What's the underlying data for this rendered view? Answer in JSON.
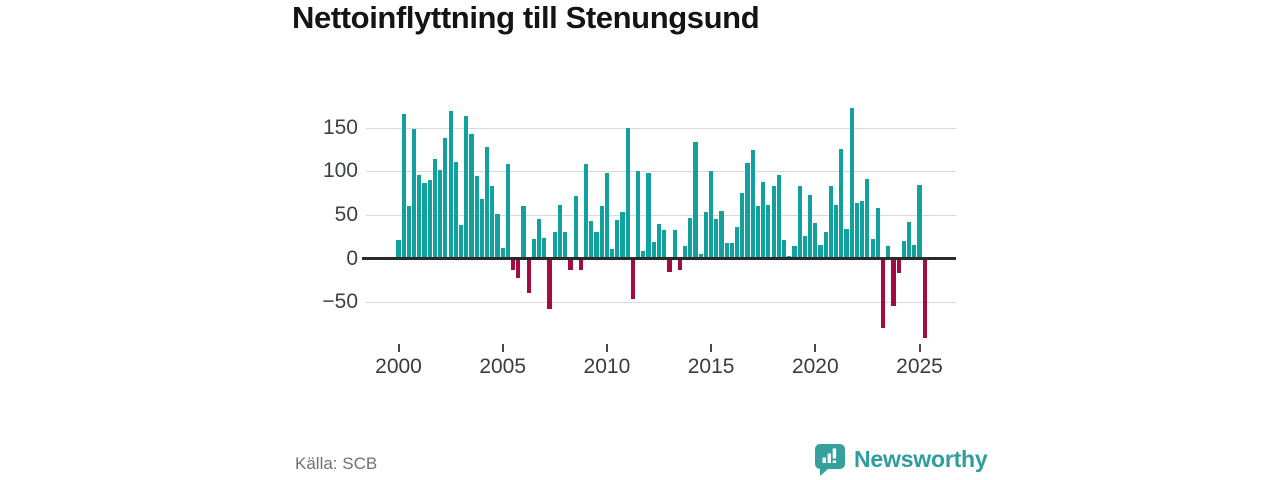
{
  "title": "Nettoinflyttning till Stenungsund",
  "source": {
    "text": "Källa: SCB"
  },
  "logo": {
    "text": "Newsworthy",
    "icon": "newsworthy-speech-bubble-chart-icon",
    "color": "#35a09c"
  },
  "colors": {
    "positive_bar": "#11a29f",
    "negative_bar": "#a40c3f",
    "gridline": "#d9d9d9",
    "zero_line": "#2b2b2b",
    "axis_text": "#3d4045",
    "title_text": "#141414",
    "source_text": "#6e7176",
    "logo_teal": "#2f9d9c"
  },
  "chart_data": {
    "type": "bar",
    "title": "Nettoinflyttning till Stenungsund",
    "xlabel": "",
    "ylabel": "",
    "frequency": "quarterly",
    "start": "2000 Q1",
    "end": "2025 Q2",
    "grid": true,
    "legend": false,
    "ylim": [
      -95,
      185
    ],
    "y_ticks": [
      {
        "value": 150,
        "label": "150"
      },
      {
        "value": 100,
        "label": "100"
      },
      {
        "value": 50,
        "label": "50"
      },
      {
        "value": 0,
        "label": "0"
      },
      {
        "value": -50,
        "label": "−50"
      }
    ],
    "x_year_ticks": [
      {
        "label": "2000",
        "index": 0
      },
      {
        "label": "2005",
        "index": 20
      },
      {
        "label": "2010",
        "index": 40
      },
      {
        "label": "2015",
        "index": 60
      },
      {
        "label": "2020",
        "index": 80
      },
      {
        "label": "2025",
        "index": 100
      }
    ],
    "values": [
      21,
      166,
      60,
      149,
      96,
      87,
      90,
      114,
      102,
      138,
      169,
      111,
      39,
      164,
      143,
      95,
      68,
      128,
      83,
      51,
      12,
      108,
      -13,
      -22,
      60,
      -40,
      22,
      45,
      24,
      -58,
      31,
      62,
      31,
      -13,
      72,
      -13,
      108,
      43,
      31,
      60,
      98,
      11,
      44,
      53,
      150,
      -46,
      101,
      9,
      98,
      19,
      40,
      33,
      -15,
      33,
      -13,
      14,
      46,
      134,
      5,
      53,
      100,
      45,
      55,
      18,
      18,
      36,
      75,
      110,
      125,
      60,
      88,
      62,
      83,
      96,
      21,
      3,
      14,
      83,
      26,
      73,
      41,
      16,
      31,
      83,
      61,
      126,
      34,
      173,
      64,
      66,
      91,
      22,
      58,
      -80,
      14,
      -55,
      -17,
      20,
      42,
      16,
      84,
      -91
    ]
  }
}
